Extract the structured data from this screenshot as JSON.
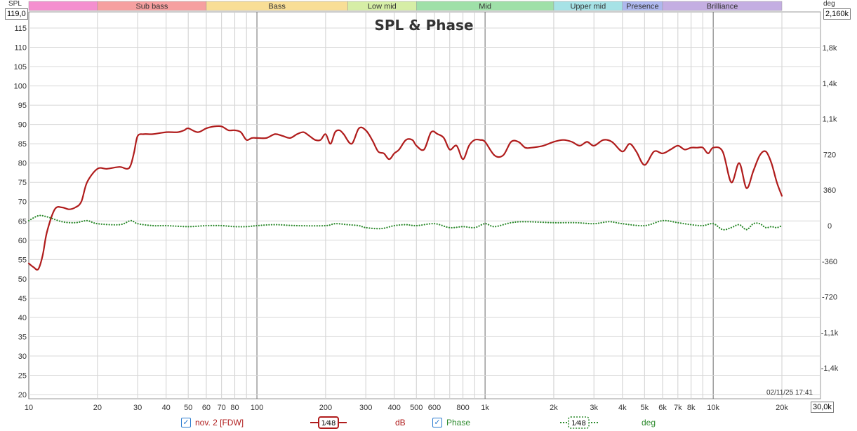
{
  "chart_data": {
    "type": "line",
    "title": "SPL & Phase",
    "x_axis": {
      "scale": "log",
      "range": [
        10,
        30000
      ],
      "ticks": [
        10,
        20,
        30,
        40,
        50,
        60,
        70,
        80,
        100,
        200,
        300,
        400,
        500,
        600,
        800,
        1000,
        2000,
        3000,
        4000,
        5000,
        6000,
        7000,
        8000,
        10000,
        20000
      ],
      "tick_labels": [
        "10",
        "20",
        "30",
        "40",
        "50",
        "60",
        "70",
        "80",
        "100",
        "200",
        "300",
        "400",
        "500",
        "600",
        "800",
        "1k",
        "2k",
        "3k",
        "4k",
        "5k",
        "6k",
        "7k",
        "8k",
        "10k",
        "20k"
      ],
      "max_label": "30,0k"
    },
    "y_left": {
      "unit": "SPL",
      "range": [
        20,
        119
      ],
      "max_label": "119,0",
      "ticks": [
        20,
        25,
        30,
        35,
        40,
        45,
        50,
        55,
        60,
        65,
        70,
        75,
        80,
        85,
        90,
        95,
        100,
        105,
        110,
        115
      ]
    },
    "y_right": {
      "unit": "deg",
      "range": [
        -2160,
        2160
      ],
      "max_label": "2,160k",
      "ticks": [
        -1440,
        -1080,
        -720,
        -360,
        0,
        360,
        720,
        1080,
        1440,
        1800
      ],
      "tick_labels": [
        "-1,4k",
        "-1,1k",
        "-720",
        "-360",
        "0",
        "360",
        "720",
        "1,1k",
        "1,4k",
        "1,8k"
      ]
    },
    "grid": true,
    "bands": [
      {
        "label": "",
        "from": 10,
        "to": 20,
        "color": "#f48fcf"
      },
      {
        "label": "Sub bass",
        "from": 20,
        "to": 60,
        "color": "#f6a0a0"
      },
      {
        "label": "Bass",
        "from": 60,
        "to": 250,
        "color": "#f8de96"
      },
      {
        "label": "Low mid",
        "from": 250,
        "to": 500,
        "color": "#d6eea6"
      },
      {
        "label": "Mid",
        "from": 500,
        "to": 2000,
        "color": "#9fe0a8"
      },
      {
        "label": "Upper mid",
        "from": 2000,
        "to": 4000,
        "color": "#a6e2e6"
      },
      {
        "label": "Presence",
        "from": 4000,
        "to": 6000,
        "color": "#aeb8ee"
      },
      {
        "label": "Brilliance",
        "from": 6000,
        "to": 20000,
        "color": "#c4aee2"
      }
    ],
    "series": [
      {
        "name": "nov. 2 [FDW]",
        "axis": "left",
        "color": "#b01c1c",
        "style": "solid",
        "x": [
          10,
          10.5,
          11,
          11.5,
          12,
          13,
          14,
          15,
          16,
          17,
          18,
          20,
          22,
          25,
          27,
          28,
          29,
          30,
          32,
          35,
          40,
          45,
          48,
          50,
          55,
          60,
          65,
          70,
          75,
          80,
          85,
          90,
          95,
          100,
          110,
          120,
          130,
          140,
          150,
          160,
          170,
          180,
          190,
          200,
          210,
          220,
          230,
          240,
          260,
          280,
          300,
          320,
          340,
          360,
          380,
          400,
          420,
          450,
          480,
          500,
          540,
          580,
          620,
          660,
          700,
          750,
          800,
          850,
          900,
          950,
          1000,
          1100,
          1200,
          1300,
          1400,
          1500,
          1600,
          1800,
          2000,
          2200,
          2400,
          2600,
          2800,
          3000,
          3300,
          3600,
          4000,
          4300,
          4600,
          5000,
          5500,
          6000,
          6500,
          7000,
          7500,
          8000,
          8500,
          9000,
          9500,
          10000,
          11000,
          12000,
          13000,
          14000,
          15000,
          16000,
          17000,
          18000,
          19000,
          20000
        ],
        "values": [
          54,
          53,
          52.5,
          56,
          62,
          68,
          68.5,
          68,
          68.5,
          70,
          75,
          78.5,
          78.5,
          79,
          78.5,
          79.5,
          83,
          87,
          87.5,
          87.5,
          88,
          88,
          88.5,
          89,
          88,
          89,
          89.5,
          89.5,
          88.5,
          88.5,
          88,
          86,
          86.5,
          86.5,
          86.5,
          87.5,
          87,
          86.5,
          87.5,
          88,
          87,
          86,
          86,
          87.5,
          85,
          88,
          88.5,
          87.5,
          85,
          89,
          88.5,
          86,
          83,
          82.5,
          81,
          82.5,
          83.5,
          86,
          86,
          84.5,
          83.5,
          88,
          87.5,
          86.5,
          83.5,
          84.5,
          81,
          84.5,
          86,
          86,
          85.5,
          82,
          82,
          85.5,
          85.5,
          84,
          84,
          84.5,
          85.5,
          86,
          85.5,
          84.5,
          85.5,
          84.5,
          86,
          85.5,
          83,
          85,
          83,
          79.5,
          83,
          82.5,
          83.5,
          84.5,
          83.5,
          84,
          84,
          84,
          82.5,
          84,
          83,
          75,
          80,
          73.5,
          78,
          82,
          83,
          80,
          75,
          71.5
        ]
      },
      {
        "name": "Phase",
        "axis": "right",
        "color": "#2e8b2e",
        "style": "dotted",
        "x": [
          10,
          11,
          12,
          14,
          16,
          18,
          20,
          25,
          28,
          30,
          35,
          40,
          50,
          60,
          70,
          80,
          90,
          100,
          120,
          150,
          200,
          220,
          250,
          280,
          300,
          350,
          400,
          450,
          500,
          600,
          700,
          800,
          900,
          1000,
          1100,
          1300,
          1500,
          2000,
          2500,
          3000,
          3500,
          4000,
          5000,
          6000,
          7000,
          8000,
          9000,
          10000,
          11000,
          12000,
          13000,
          14000,
          15000,
          16000,
          17000,
          18000,
          19000,
          20000
        ],
        "values": [
          50,
          100,
          90,
          40,
          30,
          50,
          20,
          10,
          50,
          20,
          0,
          0,
          -10,
          0,
          0,
          -10,
          -10,
          0,
          10,
          0,
          0,
          20,
          10,
          0,
          -20,
          -30,
          0,
          10,
          0,
          20,
          -20,
          -10,
          -20,
          20,
          -10,
          30,
          40,
          30,
          30,
          20,
          40,
          20,
          0,
          50,
          30,
          10,
          0,
          20,
          -40,
          -20,
          10,
          -40,
          20,
          20,
          -20,
          -10,
          -20,
          0
        ]
      }
    ],
    "timestamp": "02/11/25 17:41"
  },
  "legend": {
    "spl_label": "nov. 2 [FDW]",
    "spl_smoothing": "1⁄48",
    "spl_unit": "dB",
    "phase_label": "Phase",
    "phase_smoothing": "1⁄48",
    "phase_unit": "deg"
  }
}
